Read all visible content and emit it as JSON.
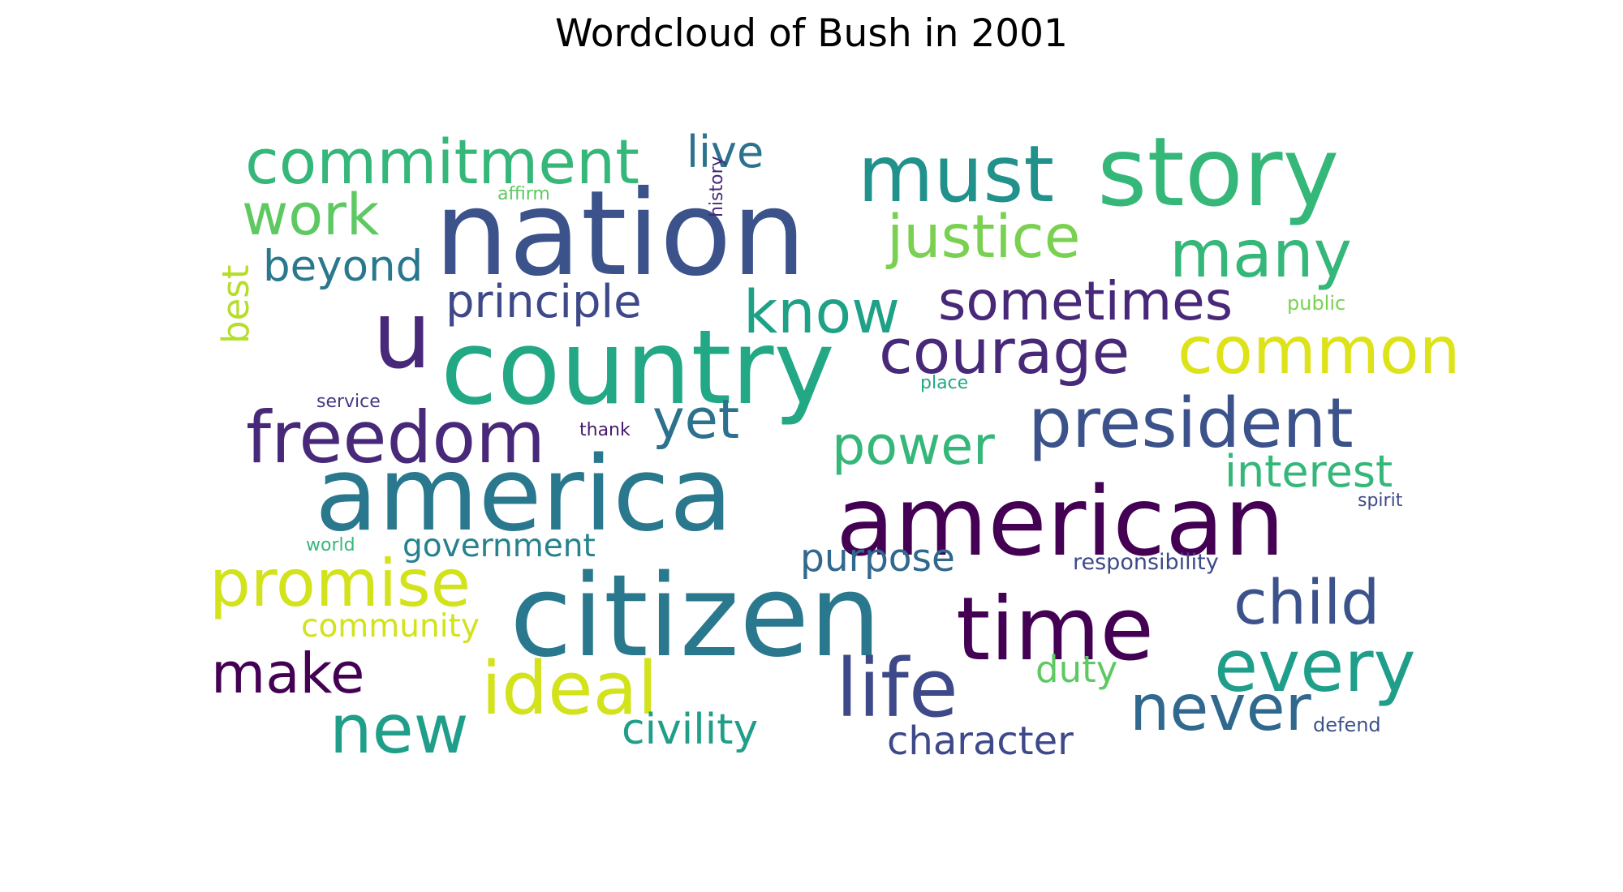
{
  "chart_data": {
    "type": "wordcloud",
    "title": "Wordcloud of Bush in 2001",
    "words": [
      {
        "text": "nation",
        "weight": 1.0,
        "color": "#3b528b"
      },
      {
        "text": "citizen",
        "weight": 0.98,
        "color": "#2a788e"
      },
      {
        "text": "country",
        "weight": 0.9,
        "color": "#22a884"
      },
      {
        "text": "america",
        "weight": 0.9,
        "color": "#2a788e"
      },
      {
        "text": "american",
        "weight": 0.9,
        "color": "#440154"
      },
      {
        "text": "story",
        "weight": 0.86,
        "color": "#35b779"
      },
      {
        "text": "u",
        "weight": 0.82,
        "color": "#482878"
      },
      {
        "text": "time",
        "weight": 0.78,
        "color": "#440154"
      },
      {
        "text": "life",
        "weight": 0.72,
        "color": "#3e4989"
      },
      {
        "text": "must",
        "weight": 0.7,
        "color": "#21918c"
      },
      {
        "text": "ideal",
        "weight": 0.64,
        "color": "#d2e21b"
      },
      {
        "text": "freedom",
        "weight": 0.62,
        "color": "#482878"
      },
      {
        "text": "every",
        "weight": 0.62,
        "color": "#1f9e89"
      },
      {
        "text": "president",
        "weight": 0.6,
        "color": "#3b528b"
      },
      {
        "text": "new",
        "weight": 0.58,
        "color": "#1f9e89"
      },
      {
        "text": "promise",
        "weight": 0.56,
        "color": "#d2e21b"
      },
      {
        "text": "common",
        "weight": 0.54,
        "color": "#dde318"
      },
      {
        "text": "many",
        "weight": 0.54,
        "color": "#35b779"
      },
      {
        "text": "never",
        "weight": 0.5,
        "color": "#31688e"
      },
      {
        "text": "commitment",
        "weight": 0.48,
        "color": "#35b779"
      },
      {
        "text": "courage",
        "weight": 0.48,
        "color": "#482878"
      },
      {
        "text": "child",
        "weight": 0.48,
        "color": "#3b528b"
      },
      {
        "text": "justice",
        "weight": 0.46,
        "color": "#7ad151"
      },
      {
        "text": "know",
        "weight": 0.46,
        "color": "#1fa187"
      },
      {
        "text": "work",
        "weight": 0.44,
        "color": "#5ec962"
      },
      {
        "text": "make",
        "weight": 0.44,
        "color": "#440154"
      },
      {
        "text": "yet",
        "weight": 0.42,
        "color": "#2c728e"
      },
      {
        "text": "sometimes",
        "weight": 0.42,
        "color": "#482878"
      },
      {
        "text": "power",
        "weight": 0.42,
        "color": "#35b779"
      },
      {
        "text": "principle",
        "weight": 0.36,
        "color": "#3e4989"
      },
      {
        "text": "live",
        "weight": 0.34,
        "color": "#2c728e"
      },
      {
        "text": "interest",
        "weight": 0.34,
        "color": "#35b779"
      },
      {
        "text": "beyond",
        "weight": 0.32,
        "color": "#2a788e"
      },
      {
        "text": "civility",
        "weight": 0.32,
        "color": "#1f9e89"
      },
      {
        "text": "character",
        "weight": 0.3,
        "color": "#3e4989"
      },
      {
        "text": "purpose",
        "weight": 0.3,
        "color": "#31688e"
      },
      {
        "text": "best",
        "weight": 0.28,
        "color": "#b5de2b"
      },
      {
        "text": "duty",
        "weight": 0.28,
        "color": "#5ec962"
      },
      {
        "text": "government",
        "weight": 0.26,
        "color": "#26828e"
      },
      {
        "text": "community",
        "weight": 0.26,
        "color": "#d2e21b"
      },
      {
        "text": "responsibility",
        "weight": 0.18,
        "color": "#3e4989"
      },
      {
        "text": "defend",
        "weight": 0.16,
        "color": "#3b528b"
      },
      {
        "text": "history",
        "weight": 0.16,
        "color": "#482878"
      },
      {
        "text": "public",
        "weight": 0.16,
        "color": "#7ad151"
      },
      {
        "text": "affirm",
        "weight": 0.15,
        "color": "#5ec962"
      },
      {
        "text": "service",
        "weight": 0.15,
        "color": "#443983"
      },
      {
        "text": "thank",
        "weight": 0.15,
        "color": "#481a6c"
      },
      {
        "text": "place",
        "weight": 0.15,
        "color": "#22a884"
      },
      {
        "text": "spirit",
        "weight": 0.15,
        "color": "#3e4989"
      },
      {
        "text": "world",
        "weight": 0.15,
        "color": "#35b779"
      }
    ],
    "grid": false,
    "legend": "none"
  }
}
